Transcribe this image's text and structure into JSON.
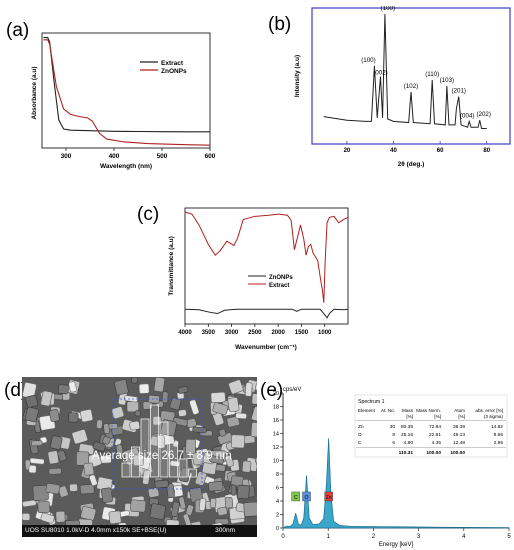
{
  "panel_labels": {
    "a": "(a)",
    "b": "(b)",
    "c": "(c)",
    "d": "(d)",
    "e": "(e)"
  },
  "colors": {
    "extract": "#222222",
    "znonps": "#b02020",
    "xrd_frame": "#3b3bc8",
    "eds_fill": "#3aa6c9",
    "eds_line": "#1c6e8f"
  },
  "chart_data": [
    {
      "id": "a",
      "type": "line",
      "xlabel": "Wavelength (nm)",
      "ylabel": "Absorbance (a.u)",
      "xlim": [
        250,
        600
      ],
      "xticks": [
        "300",
        "400",
        "500",
        "600"
      ],
      "legend_position": "top-right",
      "series": [
        {
          "name": "Extract",
          "color": "#222222",
          "points": [
            [
              253,
              0.99
            ],
            [
              262,
              0.99
            ],
            [
              266,
              0.95
            ],
            [
              275,
              0.6
            ],
            [
              285,
              0.25
            ],
            [
              295,
              0.17
            ],
            [
              310,
              0.16
            ],
            [
              350,
              0.155
            ],
            [
              400,
              0.15
            ],
            [
              450,
              0.148
            ],
            [
              500,
              0.146
            ],
            [
              550,
              0.145
            ],
            [
              600,
              0.145
            ]
          ]
        },
        {
          "name": "ZnONPs",
          "color": "#b02020",
          "points": [
            [
              253,
              0.97
            ],
            [
              262,
              0.97
            ],
            [
              266,
              0.93
            ],
            [
              280,
              0.55
            ],
            [
              295,
              0.35
            ],
            [
              310,
              0.3
            ],
            [
              330,
              0.28
            ],
            [
              345,
              0.27
            ],
            [
              355,
              0.24
            ],
            [
              370,
              0.13
            ],
            [
              385,
              0.08
            ],
            [
              420,
              0.055
            ],
            [
              470,
              0.04
            ],
            [
              550,
              0.03
            ],
            [
              600,
              0.025
            ]
          ]
        }
      ]
    },
    {
      "id": "b",
      "type": "line",
      "xlabel": "2θ (deg.)",
      "ylabel": "Intensity (a.u)",
      "xlim": [
        5,
        90
      ],
      "xticks": [
        "20",
        "40",
        "60",
        "80"
      ],
      "peaks": [
        {
          "label": "(100)",
          "x": 31.8
        },
        {
          "label": "(002)",
          "x": 34.4
        },
        {
          "label": "(100)",
          "x": 36.3
        },
        {
          "label": "(102)",
          "x": 47.5
        },
        {
          "label": "(110)",
          "x": 56.6
        },
        {
          "label": "(103)",
          "x": 62.9
        },
        {
          "label": "(201)",
          "x": 68.0
        },
        {
          "label": "(004)",
          "x": 72.5
        },
        {
          "label": "(202)",
          "x": 77.0
        }
      ],
      "series": [
        {
          "name": "",
          "color": "#222222",
          "points": [
            [
              10,
              0.13
            ],
            [
              20,
              0.1
            ],
            [
              28,
              0.09
            ],
            [
              30.5,
              0.09
            ],
            [
              31.8,
              0.56
            ],
            [
              33,
              0.12
            ],
            [
              34.4,
              0.47
            ],
            [
              35.3,
              0.12
            ],
            [
              36.3,
              1.0
            ],
            [
              37.5,
              0.11
            ],
            [
              40,
              0.09
            ],
            [
              46.5,
              0.08
            ],
            [
              47.5,
              0.34
            ],
            [
              48.5,
              0.08
            ],
            [
              55.7,
              0.07
            ],
            [
              56.6,
              0.44
            ],
            [
              57.6,
              0.07
            ],
            [
              62.2,
              0.06
            ],
            [
              62.9,
              0.39
            ],
            [
              63.8,
              0.06
            ],
            [
              66.4,
              0.06
            ],
            [
              67.0,
              0.2
            ],
            [
              68.0,
              0.3
            ],
            [
              69.0,
              0.06
            ],
            [
              71.8,
              0.04
            ],
            [
              72.5,
              0.09
            ],
            [
              73.3,
              0.04
            ],
            [
              76.3,
              0.04
            ],
            [
              77.0,
              0.1
            ],
            [
              77.8,
              0.03
            ],
            [
              80,
              0.03
            ]
          ]
        }
      ]
    },
    {
      "id": "c",
      "type": "line",
      "xlabel": "Wavenumber (cm⁻¹)",
      "ylabel": "Transmittance (a.u)",
      "xlim": [
        4000,
        500
      ],
      "xticks": [
        "4000",
        "3500",
        "3000",
        "2500",
        "2000",
        "1500",
        "1000"
      ],
      "legend_position": "center",
      "series": [
        {
          "name": "ZnONPs",
          "color": "#222222",
          "points": [
            [
              4000,
              0.1
            ],
            [
              3700,
              0.095
            ],
            [
              3450,
              0.07
            ],
            [
              3300,
              0.06
            ],
            [
              3150,
              0.09
            ],
            [
              2900,
              0.1
            ],
            [
              2500,
              0.1
            ],
            [
              2000,
              0.1
            ],
            [
              1700,
              0.1
            ],
            [
              1600,
              0.08
            ],
            [
              1500,
              0.1
            ],
            [
              1100,
              0.1
            ],
            [
              1020,
              0.06
            ],
            [
              950,
              0.02
            ],
            [
              900,
              0.06
            ],
            [
              800,
              0.1
            ],
            [
              600,
              0.095
            ],
            [
              500,
              0.1
            ]
          ]
        },
        {
          "name": "Extract",
          "color": "#b02020",
          "points": [
            [
              4000,
              1.0
            ],
            [
              3850,
              0.98
            ],
            [
              3700,
              0.88
            ],
            [
              3500,
              0.7
            ],
            [
              3350,
              0.6
            ],
            [
              3250,
              0.64
            ],
            [
              3100,
              0.73
            ],
            [
              2950,
              0.69
            ],
            [
              2870,
              0.76
            ],
            [
              2750,
              0.93
            ],
            [
              2500,
              0.96
            ],
            [
              2200,
              0.97
            ],
            [
              2000,
              0.98
            ],
            [
              1800,
              0.97
            ],
            [
              1720,
              0.92
            ],
            [
              1650,
              0.65
            ],
            [
              1600,
              0.74
            ],
            [
              1520,
              0.88
            ],
            [
              1450,
              0.75
            ],
            [
              1400,
              0.6
            ],
            [
              1350,
              0.68
            ],
            [
              1300,
              0.7
            ],
            [
              1250,
              0.62
            ],
            [
              1150,
              0.55
            ],
            [
              1080,
              0.35
            ],
            [
              1050,
              0.28
            ],
            [
              1020,
              0.16
            ],
            [
              990,
              0.55
            ],
            [
              950,
              0.9
            ],
            [
              900,
              0.95
            ],
            [
              800,
              0.96
            ],
            [
              700,
              0.9
            ],
            [
              600,
              0.93
            ],
            [
              500,
              0.95
            ]
          ]
        }
      ]
    },
    {
      "id": "e",
      "type": "area",
      "xlabel": "Energy [keV]",
      "ylabel": "cps/eV",
      "xlim": [
        0,
        5
      ],
      "ylim": [
        0,
        20
      ],
      "xticks": [
        "0",
        "1",
        "2",
        "3",
        "4",
        "5"
      ],
      "yticks": [
        "0",
        "2",
        "4",
        "6",
        "8",
        "10",
        "12",
        "14",
        "16",
        "18",
        "20"
      ],
      "element_markers": [
        {
          "label": "C",
          "x": 0.28,
          "color": "#7ec850"
        },
        {
          "label": "O",
          "x": 0.52,
          "color": "#5a8fe0"
        },
        {
          "label": "Zn",
          "x": 1.01,
          "color": "#e04040"
        }
      ],
      "series": [
        {
          "name": "",
          "color": "#3aa6c9",
          "points": [
            [
              0.0,
              0
            ],
            [
              0.08,
              0.3
            ],
            [
              0.15,
              0.2
            ],
            [
              0.22,
              0.6
            ],
            [
              0.28,
              2.2
            ],
            [
              0.34,
              0.6
            ],
            [
              0.4,
              0.4
            ],
            [
              0.46,
              1.5
            ],
            [
              0.52,
              7.8
            ],
            [
              0.58,
              1.5
            ],
            [
              0.66,
              0.5
            ],
            [
              0.8,
              0.6
            ],
            [
              0.9,
              1.4
            ],
            [
              0.96,
              6.5
            ],
            [
              1.01,
              13.3
            ],
            [
              1.06,
              5.0
            ],
            [
              1.12,
              1.0
            ],
            [
              1.25,
              0.4
            ],
            [
              1.5,
              0.25
            ],
            [
              2.0,
              0.2
            ],
            [
              2.5,
              0.18
            ],
            [
              3.0,
              0.15
            ],
            [
              3.5,
              0.12
            ],
            [
              4.0,
              0.1
            ],
            [
              4.5,
              0.08
            ],
            [
              5.0,
              0.05
            ]
          ]
        }
      ],
      "table": {
        "title": "Spectrum 1",
        "headers": [
          "Element",
          "At. No.",
          "Mass [%]",
          "Mass Norm. [%]",
          "Atom [%]",
          "abs. error [%] (3 sigma)"
        ],
        "rows": [
          [
            "Zn",
            "30",
            "80.35",
            "72.84",
            "38.39",
            "14.82"
          ],
          [
            "O",
            "8",
            "25.16",
            "22.81",
            "49.13",
            "9.66"
          ],
          [
            "C",
            "6",
            "4.80",
            "4.35",
            "12.48",
            "2.95"
          ]
        ],
        "total": [
          "",
          "",
          "110.31",
          "100.00",
          "100.00",
          ""
        ]
      }
    }
  ],
  "sem": {
    "average_label": "Average size 26.7 ± 8.9 nm",
    "info_left": "UOS SU8010 1.0kV-D 4.0mm x150k SE+BSE(U)",
    "info_right": "300nm"
  }
}
